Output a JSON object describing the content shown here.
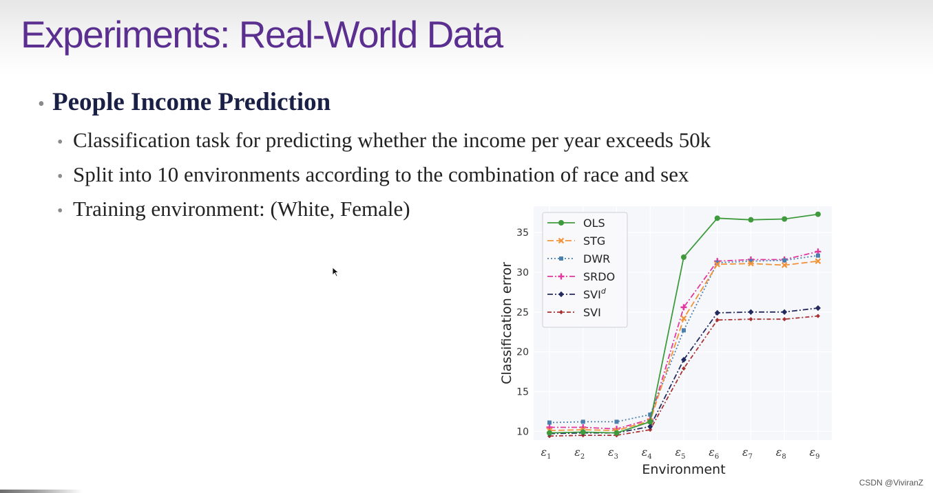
{
  "slide": {
    "title": "Experiments: Real-World Data",
    "bullet": "People Income Prediction",
    "subbullets": [
      "Classification task for predicting whether the income per year exceeds 50k",
      "Split into 10 environments according to the combination of race and sex",
      "Training environment: (White, Female)"
    ],
    "watermark": "CSDN @ViviranZ"
  },
  "chart_data": {
    "type": "line",
    "xlabel": "Environment",
    "ylabel": "Classification error",
    "categories": [
      "ε1",
      "ε2",
      "ε3",
      "ε4",
      "ε5",
      "ε6",
      "ε7",
      "ε8",
      "ε9"
    ],
    "category_subscripts": [
      "1",
      "2",
      "3",
      "4",
      "5",
      "6",
      "7",
      "8",
      "9"
    ],
    "yticks": [
      10,
      15,
      20,
      25,
      30,
      35
    ],
    "ylim": [
      8.9,
      38.3
    ],
    "grid": true,
    "legend_position": "top-left",
    "series": [
      {
        "name": "OLS",
        "color": "#3e9a3c",
        "dash": "",
        "marker": "circle",
        "values": [
          9.8,
          9.9,
          9.8,
          11.2,
          31.9,
          36.8,
          36.6,
          36.7,
          37.3
        ]
      },
      {
        "name": "STG",
        "color": "#f29339",
        "dash": "9,4",
        "marker": "x",
        "values": [
          10.1,
          10.2,
          10.1,
          11.3,
          24.2,
          31.0,
          31.1,
          30.9,
          31.4
        ]
      },
      {
        "name": "DWR",
        "color": "#4a7fae",
        "dash": "2,3",
        "marker": "square",
        "values": [
          11.1,
          11.2,
          11.2,
          12.1,
          22.7,
          31.2,
          31.4,
          31.5,
          32.1
        ]
      },
      {
        "name": "SRDO",
        "color": "#e0389d",
        "dash": "8,3,2,3",
        "marker": "plus",
        "values": [
          10.5,
          10.5,
          10.3,
          11.5,
          25.6,
          31.4,
          31.6,
          31.6,
          32.6
        ]
      },
      {
        "name": "SVI",
        "name_sup": "d",
        "color": "#232a5e",
        "dash": "8,3,2,3",
        "marker": "diamond",
        "values": [
          9.7,
          9.8,
          9.8,
          10.6,
          19.0,
          24.9,
          25.0,
          25.0,
          25.5
        ]
      },
      {
        "name": "SVI",
        "color": "#a83232",
        "dash": "6,3,2,3",
        "marker": "diamond-small",
        "values": [
          9.4,
          9.5,
          9.5,
          10.2,
          17.9,
          24.0,
          24.1,
          24.1,
          24.5
        ]
      }
    ]
  }
}
